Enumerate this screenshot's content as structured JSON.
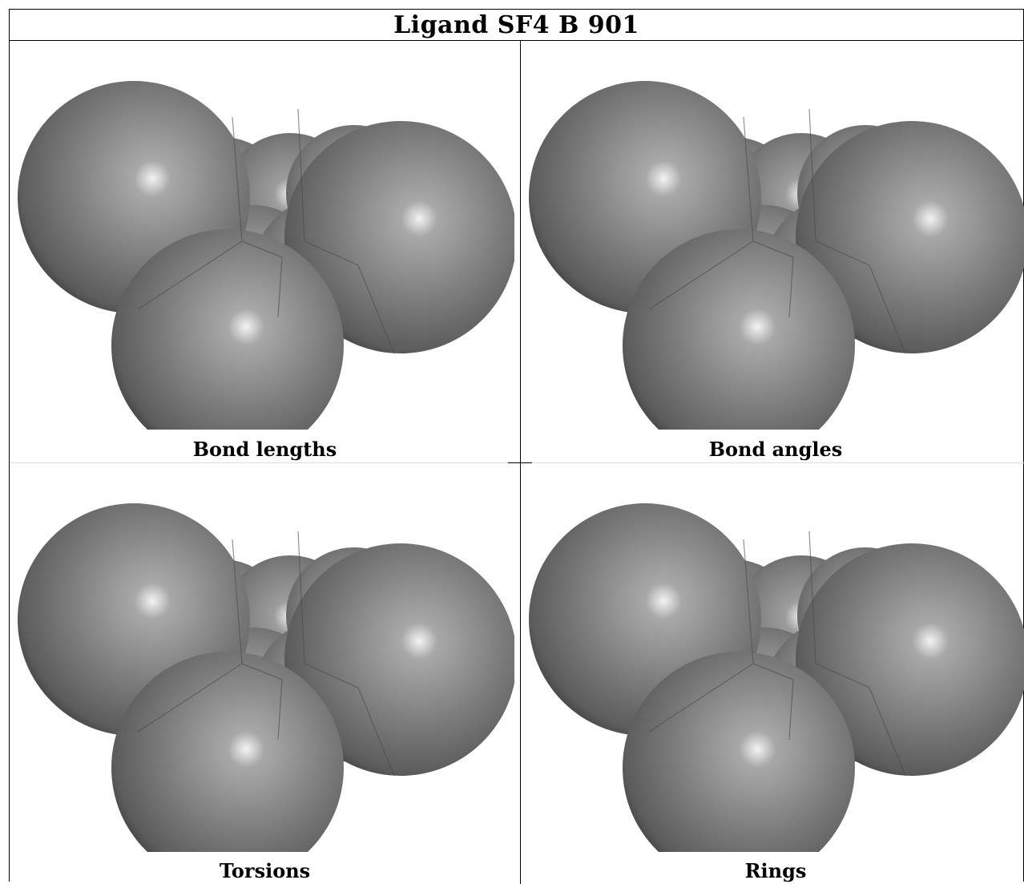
{
  "title": "Ligand SF4 B 901",
  "panels": [
    {
      "caption": "Bond lengths"
    },
    {
      "caption": "Bond angles"
    },
    {
      "caption": "Torsions"
    },
    {
      "caption": "Rings"
    }
  ]
}
